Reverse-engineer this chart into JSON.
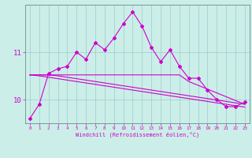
{
  "xlabel": "Windchill (Refroidissement éolien,°C)",
  "bg_color": "#cceee8",
  "line_color": "#cc00cc",
  "x": [
    0,
    1,
    2,
    3,
    4,
    5,
    6,
    7,
    8,
    9,
    10,
    11,
    12,
    13,
    14,
    15,
    16,
    17,
    18,
    19,
    20,
    21,
    22,
    23
  ],
  "y_main": [
    9.6,
    9.9,
    10.55,
    10.65,
    10.7,
    11.0,
    10.85,
    11.2,
    11.05,
    11.3,
    11.6,
    11.85,
    11.55,
    11.1,
    10.8,
    11.05,
    10.7,
    10.45,
    10.45,
    10.2,
    10.0,
    9.85,
    9.85,
    9.95
  ],
  "y_reg1": [
    10.52,
    10.52,
    10.52,
    10.52,
    10.52,
    10.52,
    10.52,
    10.52,
    10.52,
    10.52,
    10.52,
    10.52,
    10.52,
    10.52,
    10.52,
    10.52,
    10.52,
    10.38,
    10.3,
    10.22,
    10.14,
    10.06,
    9.98,
    9.9
  ],
  "y_reg2": [
    10.52,
    10.52,
    10.52,
    10.5,
    10.47,
    10.44,
    10.41,
    10.38,
    10.35,
    10.32,
    10.29,
    10.26,
    10.23,
    10.2,
    10.17,
    10.14,
    10.11,
    10.08,
    10.05,
    10.02,
    9.99,
    9.96,
    9.93,
    9.9
  ],
  "y_reg3": [
    10.52,
    10.5,
    10.47,
    10.44,
    10.41,
    10.38,
    10.35,
    10.32,
    10.29,
    10.26,
    10.23,
    10.2,
    10.17,
    10.14,
    10.11,
    10.08,
    10.05,
    10.02,
    9.99,
    9.96,
    9.93,
    9.9,
    9.87,
    9.84
  ],
  "ylim": [
    9.5,
    12.0
  ],
  "yticks": [
    10,
    11
  ],
  "xticks": [
    0,
    1,
    2,
    3,
    4,
    5,
    6,
    7,
    8,
    9,
    10,
    11,
    12,
    13,
    14,
    15,
    16,
    17,
    18,
    19,
    20,
    21,
    22,
    23
  ]
}
